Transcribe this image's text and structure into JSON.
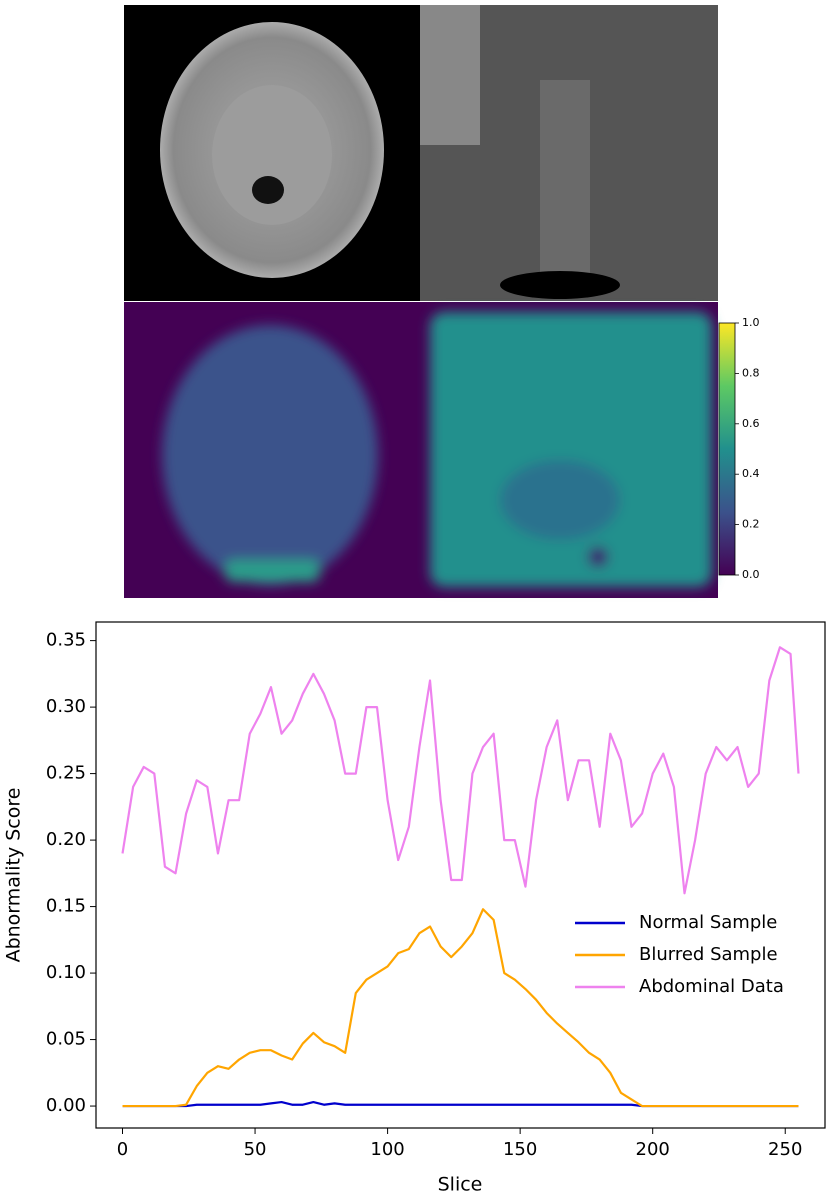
{
  "chart_data": [
    {
      "type": "colorbar",
      "colormap": "viridis",
      "ylim": [
        0,
        1
      ],
      "yticks": [
        {
          "value": 0,
          "label": "0.0"
        },
        {
          "value": 0.2,
          "label": "0.2"
        },
        {
          "value": 0.4,
          "label": "0.4"
        },
        {
          "value": 0.6,
          "label": "0.6"
        },
        {
          "value": 0.8,
          "label": "0.8"
        },
        {
          "value": 1,
          "label": "1.0"
        }
      ]
    },
    {
      "type": "line",
      "xlabel": "Slice",
      "ylabel": "Abnormality Score",
      "x": [
        0,
        4,
        8,
        12,
        16,
        20,
        24,
        28,
        32,
        36,
        40,
        44,
        48,
        52,
        56,
        60,
        64,
        68,
        72,
        76,
        80,
        84,
        88,
        92,
        96,
        100,
        104,
        108,
        112,
        116,
        120,
        124,
        128,
        132,
        136,
        140,
        144,
        148,
        152,
        156,
        160,
        164,
        168,
        172,
        176,
        180,
        184,
        188,
        192,
        196,
        200,
        204,
        208,
        212,
        216,
        220,
        224,
        228,
        232,
        236,
        240,
        244,
        248,
        252,
        255
      ],
      "series": [
        {
          "name": "Normal Sample",
          "color": "#0000cc",
          "values": [
            0,
            0,
            0,
            0,
            0,
            0,
            0,
            0.001,
            0.001,
            0.001,
            0.001,
            0.001,
            0.001,
            0.001,
            0.002,
            0.003,
            0.001,
            0.001,
            0.003,
            0.001,
            0.002,
            0.001,
            0.001,
            0.001,
            0.001,
            0.001,
            0.001,
            0.001,
            0.001,
            0.001,
            0.001,
            0.001,
            0.001,
            0.001,
            0.001,
            0.001,
            0.001,
            0.001,
            0.001,
            0.001,
            0.001,
            0.001,
            0.001,
            0.001,
            0.001,
            0.001,
            0.001,
            0.001,
            0.001,
            0,
            0,
            0,
            0,
            0,
            0,
            0,
            0,
            0,
            0,
            0,
            0,
            0,
            0,
            0,
            0
          ]
        },
        {
          "name": "Blurred Sample",
          "color": "#ffa500",
          "values": [
            0,
            0,
            0,
            0,
            0,
            0,
            0.001,
            0.015,
            0.025,
            0.03,
            0.028,
            0.035,
            0.04,
            0.042,
            0.042,
            0.038,
            0.035,
            0.047,
            0.055,
            0.048,
            0.045,
            0.04,
            0.085,
            0.095,
            0.1,
            0.105,
            0.115,
            0.118,
            0.13,
            0.135,
            0.12,
            0.112,
            0.12,
            0.13,
            0.148,
            0.14,
            0.1,
            0.095,
            0.088,
            0.08,
            0.07,
            0.062,
            0.055,
            0.048,
            0.04,
            0.035,
            0.025,
            0.01,
            0.005,
            0,
            0,
            0,
            0,
            0,
            0,
            0,
            0,
            0,
            0,
            0,
            0,
            0,
            0,
            0,
            0
          ]
        },
        {
          "name": "Abdominal Data",
          "color": "#ee82ee",
          "values": [
            0.19,
            0.24,
            0.255,
            0.25,
            0.18,
            0.175,
            0.22,
            0.245,
            0.24,
            0.19,
            0.23,
            0.23,
            0.28,
            0.295,
            0.315,
            0.28,
            0.29,
            0.31,
            0.325,
            0.31,
            0.29,
            0.25,
            0.25,
            0.3,
            0.3,
            0.23,
            0.185,
            0.21,
            0.27,
            0.32,
            0.23,
            0.17,
            0.17,
            0.25,
            0.27,
            0.28,
            0.2,
            0.2,
            0.165,
            0.23,
            0.27,
            0.29,
            0.23,
            0.26,
            0.26,
            0.21,
            0.28,
            0.26,
            0.21,
            0.22,
            0.25,
            0.265,
            0.24,
            0.16,
            0.2,
            0.25,
            0.27,
            0.26,
            0.27,
            0.24,
            0.25,
            0.32,
            0.345,
            0.34,
            0.25
          ]
        }
      ],
      "xlim": [
        -10,
        265
      ],
      "xticks": [
        0,
        50,
        100,
        150,
        200,
        250
      ],
      "ylim": [
        -0.0165,
        0.364
      ],
      "yticks": [
        {
          "value": 0,
          "label": "0.00"
        },
        {
          "value": 0.05,
          "label": "0.05"
        },
        {
          "value": 0.1,
          "label": "0.10"
        },
        {
          "value": 0.15,
          "label": "0.15"
        },
        {
          "value": 0.2,
          "label": "0.20"
        },
        {
          "value": 0.25,
          "label": "0.25"
        },
        {
          "value": 0.3,
          "label": "0.30"
        },
        {
          "value": 0.35,
          "label": "0.35"
        }
      ],
      "legend": "center right"
    }
  ]
}
